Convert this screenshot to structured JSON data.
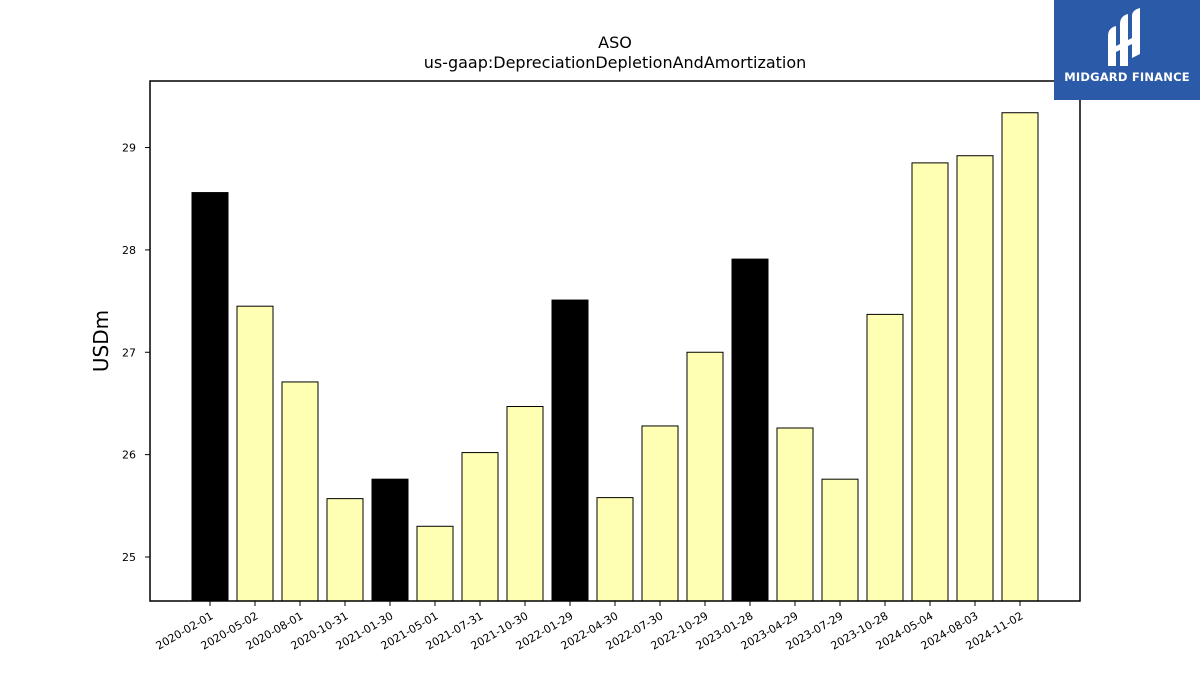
{
  "chart_data": {
    "type": "bar",
    "title": "ASO",
    "subtitle": "us-gaap:DepreciationDepletionAndAmortization",
    "xlabel": "",
    "ylabel": "USDm",
    "ylim": [
      24.57,
      29.65
    ],
    "yticks": [
      25,
      26,
      27,
      28,
      29
    ],
    "categories": [
      "2020-02-01",
      "2020-05-02",
      "2020-08-01",
      "2020-10-31",
      "2021-01-30",
      "2021-05-01",
      "2021-07-31",
      "2021-10-30",
      "2022-01-29",
      "2022-04-30",
      "2022-07-30",
      "2022-10-29",
      "2023-01-28",
      "2023-04-29",
      "2023-07-29",
      "2023-10-28",
      "2024-05-04",
      "2024-08-03",
      "2024-11-02"
    ],
    "values": [
      28.56,
      27.45,
      26.71,
      25.57,
      25.76,
      25.3,
      26.02,
      26.47,
      27.51,
      25.58,
      26.28,
      27.0,
      27.91,
      26.26,
      25.76,
      27.37,
      28.85,
      28.92,
      29.34
    ],
    "highlight": [
      true,
      false,
      false,
      false,
      true,
      false,
      false,
      false,
      true,
      false,
      false,
      false,
      true,
      false,
      false,
      false,
      false,
      false,
      false
    ],
    "colors": {
      "highlight": "#000000",
      "normal": "#ffffb3",
      "edge": "#000000"
    },
    "grid": false
  },
  "logo": {
    "text": "MIDGARD FINANCE",
    "color": "#2b5aa8"
  }
}
